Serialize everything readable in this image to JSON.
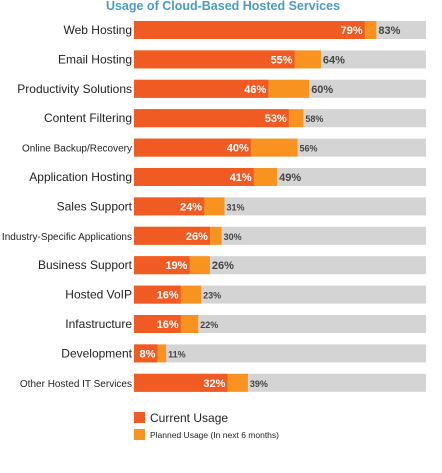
{
  "chart_data": {
    "type": "bar",
    "orientation": "horizontal",
    "stacked_overlay": true,
    "title": "Usage of Cloud-Based Hosted  Services",
    "xlim": [
      0,
      100
    ],
    "grid": false,
    "legend_position": "bottom-left",
    "categories": [
      "Web Hosting",
      "Email Hosting",
      "Productivity Solutions",
      "Content Filtering",
      "Online Backup/Recovery",
      "Application Hosting",
      "Sales Support",
      "Industry-Specific Applications",
      "Business Support",
      "Hosted VoIP",
      "Infastructure",
      "Development",
      "Other Hosted IT Services"
    ],
    "series": [
      {
        "name": "Current Usage",
        "color": "#f05a23",
        "values": [
          79,
          55,
          46,
          53,
          40,
          41,
          24,
          26,
          19,
          16,
          16,
          8,
          32
        ],
        "labels": [
          "79%",
          "55%",
          "46%",
          "53%",
          "40%",
          "41%",
          "24%",
          "26%",
          "19%",
          "16%",
          "16%",
          "8%",
          "32%"
        ]
      },
      {
        "name": "Planned Usage (In next 6 months)",
        "color": "#f7931e",
        "values": [
          83,
          64,
          60,
          58,
          56,
          49,
          31,
          30,
          26,
          23,
          22,
          11,
          39
        ],
        "labels": [
          "83%",
          "64%",
          "60%",
          "58%",
          "56%",
          "49%",
          "31%",
          "30%",
          "26%",
          "23%",
          "22%",
          "11%",
          "39%"
        ]
      }
    ],
    "background_bar_color": "#d4d4d4"
  }
}
